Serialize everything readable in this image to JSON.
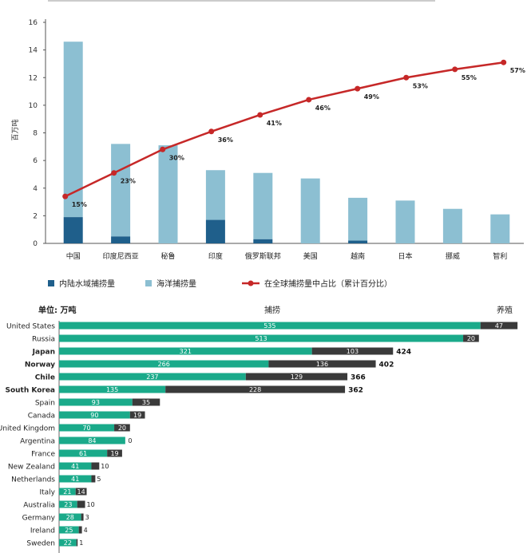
{
  "chart_data": [
    {
      "type": "bar",
      "ylabel": "百万吨",
      "ylim": [
        0,
        16
      ],
      "yticks": [
        0,
        2,
        4,
        6,
        8,
        10,
        12,
        14,
        16
      ],
      "categories": [
        "中国",
        "印度尼西亚",
        "秘鲁",
        "印度",
        "俄罗斯联邦",
        "美国",
        "越南",
        "日本",
        "挪威",
        "智利"
      ],
      "series": [
        {
          "name": "内陆水域捕捞量",
          "kind": "bar",
          "color": "#1f5f8b",
          "values": [
            1.9,
            0.5,
            0.0,
            1.7,
            0.3,
            0.0,
            0.2,
            0.0,
            0.0,
            0.0
          ]
        },
        {
          "name": "海洋捕捞量",
          "kind": "bar",
          "color": "#8cbfd2",
          "values": [
            12.7,
            6.7,
            7.1,
            3.6,
            4.8,
            4.7,
            3.1,
            3.1,
            2.5,
            2.1
          ]
        },
        {
          "name": "在全球捕捞量中占比（累计百分比）",
          "kind": "line",
          "color": "#c62828",
          "values": [
            3.4,
            5.1,
            6.8,
            8.1,
            9.3,
            10.4,
            11.2,
            12.0,
            12.6,
            13.1
          ],
          "labels": [
            "15%",
            "23%",
            "30%",
            "36%",
            "41%",
            "46%",
            "49%",
            "53%",
            "55%",
            "57%"
          ]
        }
      ],
      "legend": "bottom"
    },
    {
      "type": "bar",
      "orientation": "horizontal",
      "stacked": true,
      "unit_label": "单位: 万吨",
      "categories": [
        "United States",
        "Russia",
        "Japan",
        "Norway",
        "Chile",
        "South Korea",
        "Spain",
        "Canada",
        "United Kingdom",
        "Argentina",
        "France",
        "New Zealand",
        "Netherlands",
        "Italy",
        "Australia",
        "Germany",
        "Ireland",
        "Sweden"
      ],
      "bold_categories": [
        "Japan",
        "Norway",
        "Chile",
        "South Korea"
      ],
      "series": [
        {
          "name": "捕捞",
          "color": "#1aaa8a",
          "values": [
            535,
            513,
            321,
            266,
            237,
            135,
            93,
            90,
            70,
            84,
            61,
            41,
            41,
            21,
            23,
            28,
            25,
            22
          ]
        },
        {
          "name": "养殖",
          "color": "#3a3a3a",
          "values": [
            47,
            20,
            103,
            136,
            129,
            228,
            35,
            19,
            20,
            0,
            19,
            10,
            5,
            14,
            10,
            3,
            4,
            1
          ]
        }
      ],
      "totals": [
        "",
        "",
        "424",
        "402",
        "366",
        "362",
        "",
        "",
        "",
        "",
        "",
        "",
        "",
        "",
        "",
        "",
        "",
        ""
      ],
      "xlim": [
        0,
        590
      ]
    }
  ]
}
